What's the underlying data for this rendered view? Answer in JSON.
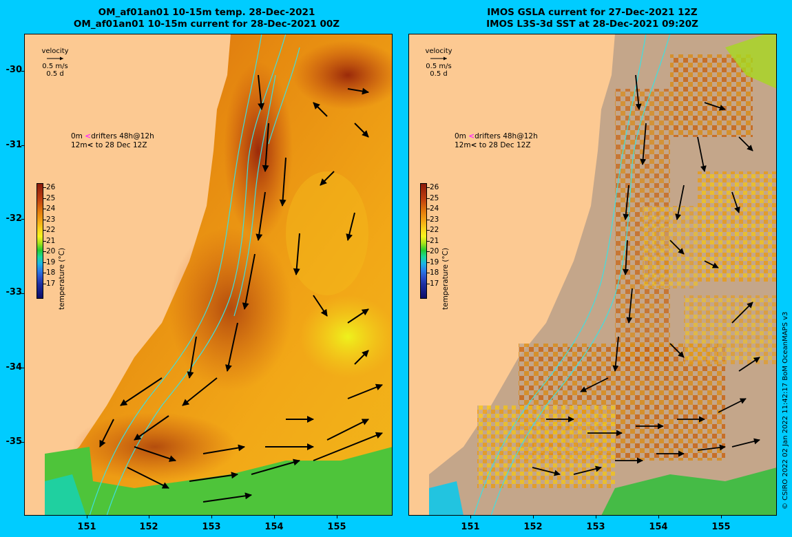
{
  "left_panel": {
    "title_line1": "OM_af01an01 10-15m temp. 28-Dec-2021",
    "title_line2": "OM_af01an01 10-15m current for 28-Dec-2021 00Z"
  },
  "right_panel": {
    "title_line1": "IMOS GSLA current for 27-Dec-2021 12Z",
    "title_line2": "IMOS L3S-3d SST at 28-Dec-2021 09:20Z"
  },
  "y_ticks": [
    "-30",
    "-31",
    "-32",
    "-33",
    "-34",
    "-35"
  ],
  "x_ticks": [
    "151",
    "152",
    "153",
    "154",
    "155"
  ],
  "velocity_legend": {
    "label": "velocity",
    "speed": "0.5 m/s",
    "time": "0.5 d"
  },
  "drifter_legend": {
    "line1_depth": "0m",
    "line1_text": "drifters 48h@12h",
    "line2_depth": "12m",
    "line2_text": "to 28 Dec 12Z"
  },
  "colorbar": {
    "title": "temperature (°C)",
    "ticks": [
      "26",
      "25",
      "24",
      "23",
      "22",
      "21",
      "20",
      "19",
      "18",
      "17"
    ]
  },
  "credit": "© CSIRO 2022   02 Jan 2022 11:42:17 BoM OceanMAPS v3",
  "colors": {
    "background": "#00ccff",
    "land": "#fcc992",
    "no_data": "#c4a68a",
    "contour": "#3ee0e0"
  }
}
